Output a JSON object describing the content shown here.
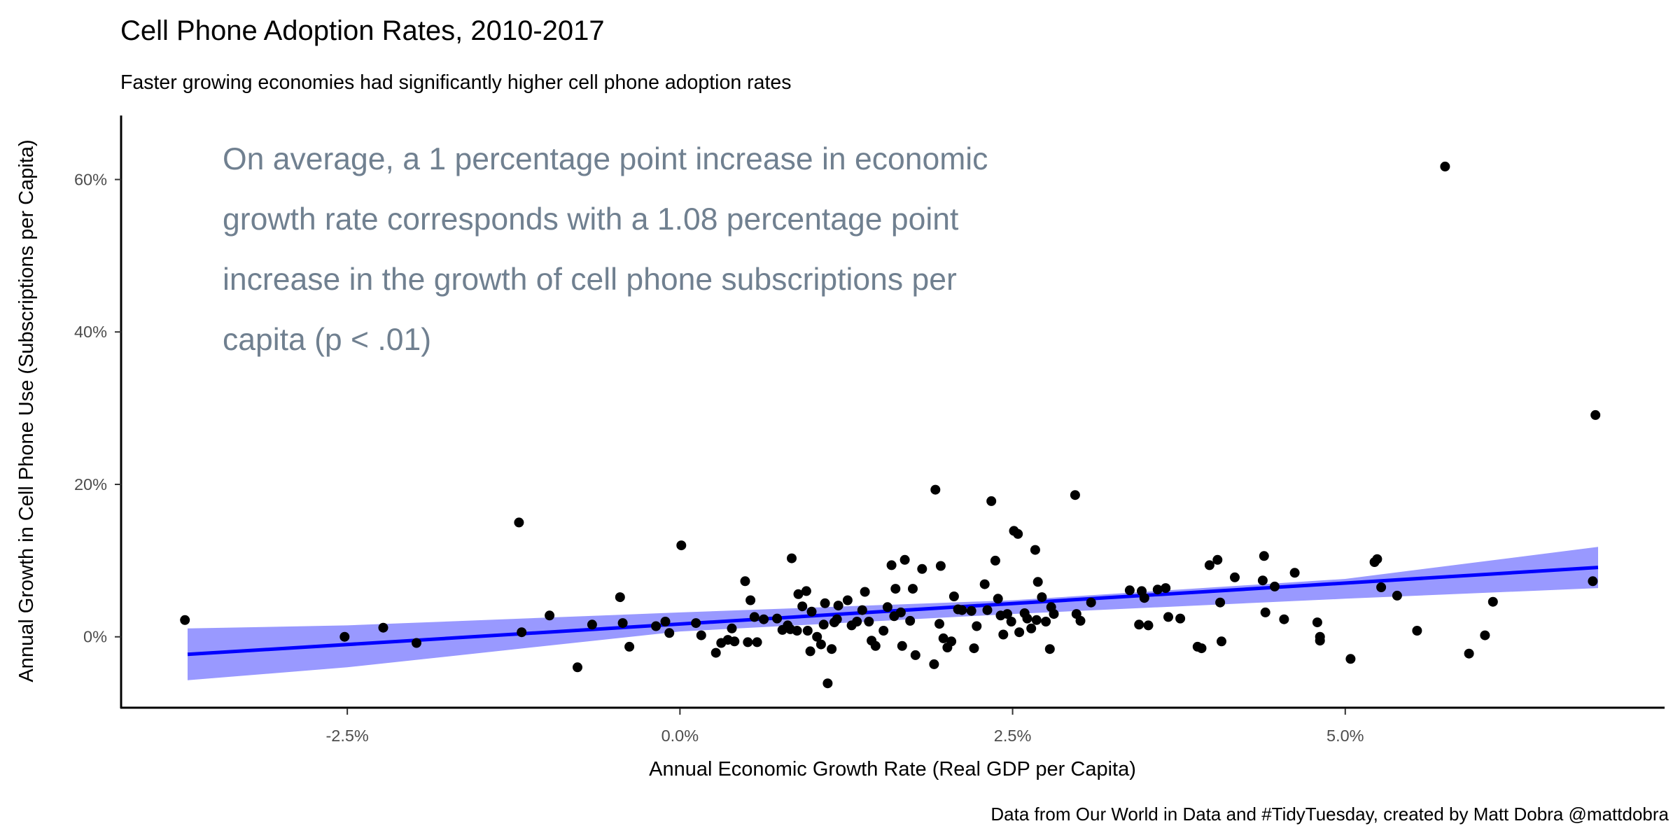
{
  "chart_data": {
    "type": "scatter",
    "title": "Cell Phone Adoption Rates, 2010-2017",
    "subtitle": "Faster growing economies had significantly higher cell phone adoption rates",
    "xlabel": "Annual Economic Growth Rate (Real GDP per Capita)",
    "ylabel": "Annual Growth in Cell Phone Use (Subscriptions per Capita)",
    "caption": "Data from Our World in Data and #TidyTuesday, created by Matt Dobra @mattdobra",
    "annotation_lines": [
      "On average, a 1 percentage point increase in economic",
      "growth rate corresponds with a 1.08 percentage point",
      "increase in the growth of cell phone subscriptions per",
      "capita (p < .01)"
    ],
    "xlim": [
      -4.2,
      7.4
    ],
    "ylim": [
      -9.3,
      68.4
    ],
    "x_ticks": [
      -2.5,
      0,
      2.5,
      5
    ],
    "x_tick_labels": [
      "-2.5%",
      "0.0%",
      "2.5%",
      "5.0%"
    ],
    "y_ticks": [
      0,
      20,
      40,
      60
    ],
    "y_tick_labels": [
      "0%",
      "20%",
      "40%",
      "60%"
    ],
    "grid": false,
    "colors": {
      "points": "#000000",
      "fit_line": "#0000ff",
      "confidence_band": "#9999ff",
      "annotation": "#708090",
      "axis": "#000000",
      "tick_labels": "#4d4d4d"
    },
    "fit_line": {
      "x": [
        -3.7,
        6.9
      ],
      "y": [
        -2.3,
        9.1
      ]
    },
    "confidence_band": {
      "x": [
        -3.7,
        -2.5,
        0,
        2.5,
        5.0,
        6.9
      ],
      "lower": [
        -5.7,
        -4.0,
        0.7,
        3.0,
        5.0,
        6.4
      ],
      "upper": [
        1.1,
        1.5,
        3.2,
        4.8,
        7.6,
        11.8
      ]
    },
    "points": [
      {
        "x": -3.72,
        "y": 2.2
      },
      {
        "x": -2.52,
        "y": 0.0
      },
      {
        "x": -2.23,
        "y": 1.2
      },
      {
        "x": -1.98,
        "y": -0.8
      },
      {
        "x": -1.21,
        "y": 15.0
      },
      {
        "x": -1.19,
        "y": 0.6
      },
      {
        "x": -0.98,
        "y": 2.8
      },
      {
        "x": -0.77,
        "y": -4.0
      },
      {
        "x": -0.66,
        "y": 1.6
      },
      {
        "x": -0.45,
        "y": 5.2
      },
      {
        "x": -0.43,
        "y": 1.8
      },
      {
        "x": -0.38,
        "y": -1.3
      },
      {
        "x": -0.18,
        "y": 1.4
      },
      {
        "x": -0.11,
        "y": 2.0
      },
      {
        "x": -0.08,
        "y": 0.5
      },
      {
        "x": 0.01,
        "y": 12.0
      },
      {
        "x": 0.12,
        "y": 1.8
      },
      {
        "x": 0.16,
        "y": 0.2
      },
      {
        "x": 0.27,
        "y": -2.1
      },
      {
        "x": 0.31,
        "y": -0.8
      },
      {
        "x": 0.36,
        "y": -0.4
      },
      {
        "x": 0.39,
        "y": 1.1
      },
      {
        "x": 0.41,
        "y": -0.6
      },
      {
        "x": 0.49,
        "y": 7.3
      },
      {
        "x": 0.51,
        "y": -0.7
      },
      {
        "x": 0.53,
        "y": 4.8
      },
      {
        "x": 0.56,
        "y": 2.6
      },
      {
        "x": 0.58,
        "y": -0.7
      },
      {
        "x": 0.63,
        "y": 2.3
      },
      {
        "x": 0.73,
        "y": 2.4
      },
      {
        "x": 0.77,
        "y": 0.9
      },
      {
        "x": 0.81,
        "y": 1.5
      },
      {
        "x": 0.83,
        "y": 1.0
      },
      {
        "x": 0.84,
        "y": 10.3
      },
      {
        "x": 0.88,
        "y": 0.8
      },
      {
        "x": 0.89,
        "y": 5.6
      },
      {
        "x": 0.92,
        "y": 4.0
      },
      {
        "x": 0.95,
        "y": 6.0
      },
      {
        "x": 0.96,
        "y": 0.8
      },
      {
        "x": 0.98,
        "y": -1.9
      },
      {
        "x": 0.99,
        "y": 3.3
      },
      {
        "x": 1.03,
        "y": 0.0
      },
      {
        "x": 1.06,
        "y": -1.0
      },
      {
        "x": 1.08,
        "y": 1.6
      },
      {
        "x": 1.09,
        "y": 4.4
      },
      {
        "x": 1.11,
        "y": -6.1
      },
      {
        "x": 1.14,
        "y": -1.6
      },
      {
        "x": 1.16,
        "y": 1.9
      },
      {
        "x": 1.18,
        "y": 2.3
      },
      {
        "x": 1.19,
        "y": 4.1
      },
      {
        "x": 1.26,
        "y": 4.8
      },
      {
        "x": 1.29,
        "y": 1.5
      },
      {
        "x": 1.33,
        "y": 2.0
      },
      {
        "x": 1.37,
        "y": 3.5
      },
      {
        "x": 1.39,
        "y": 5.9
      },
      {
        "x": 1.42,
        "y": 2.0
      },
      {
        "x": 1.44,
        "y": -0.5
      },
      {
        "x": 1.47,
        "y": -1.2
      },
      {
        "x": 1.53,
        "y": 0.8
      },
      {
        "x": 1.56,
        "y": 3.9
      },
      {
        "x": 1.59,
        "y": 9.4
      },
      {
        "x": 1.61,
        "y": 2.7
      },
      {
        "x": 1.62,
        "y": 6.3
      },
      {
        "x": 1.66,
        "y": 3.2
      },
      {
        "x": 1.67,
        "y": -1.2
      },
      {
        "x": 1.69,
        "y": 10.1
      },
      {
        "x": 1.73,
        "y": 2.1
      },
      {
        "x": 1.75,
        "y": 6.3
      },
      {
        "x": 1.77,
        "y": -2.4
      },
      {
        "x": 1.82,
        "y": 8.9
      },
      {
        "x": 1.91,
        "y": -3.6
      },
      {
        "x": 1.92,
        "y": 19.3
      },
      {
        "x": 1.95,
        "y": 1.7
      },
      {
        "x": 1.96,
        "y": 9.3
      },
      {
        "x": 1.98,
        "y": -0.2
      },
      {
        "x": 2.01,
        "y": -1.4
      },
      {
        "x": 2.04,
        "y": -0.6
      },
      {
        "x": 2.06,
        "y": 5.3
      },
      {
        "x": 2.09,
        "y": 3.6
      },
      {
        "x": 2.12,
        "y": 3.5
      },
      {
        "x": 2.19,
        "y": 3.4
      },
      {
        "x": 2.21,
        "y": -1.5
      },
      {
        "x": 2.23,
        "y": 1.4
      },
      {
        "x": 2.29,
        "y": 6.9
      },
      {
        "x": 2.31,
        "y": 3.5
      },
      {
        "x": 2.34,
        "y": 17.8
      },
      {
        "x": 2.37,
        "y": 10.0
      },
      {
        "x": 2.39,
        "y": 5.0
      },
      {
        "x": 2.41,
        "y": 2.8
      },
      {
        "x": 2.43,
        "y": 0.3
      },
      {
        "x": 2.46,
        "y": 3.0
      },
      {
        "x": 2.49,
        "y": 2.0
      },
      {
        "x": 2.51,
        "y": 13.9
      },
      {
        "x": 2.54,
        "y": 13.5
      },
      {
        "x": 2.55,
        "y": 0.6
      },
      {
        "x": 2.59,
        "y": 3.1
      },
      {
        "x": 2.61,
        "y": 2.4
      },
      {
        "x": 2.64,
        "y": 1.1
      },
      {
        "x": 2.67,
        "y": 11.4
      },
      {
        "x": 2.68,
        "y": 2.2
      },
      {
        "x": 2.69,
        "y": 7.2
      },
      {
        "x": 2.72,
        "y": 5.2
      },
      {
        "x": 2.75,
        "y": 2.0
      },
      {
        "x": 2.78,
        "y": -1.6
      },
      {
        "x": 2.79,
        "y": 3.9
      },
      {
        "x": 2.81,
        "y": 3.0
      },
      {
        "x": 2.97,
        "y": 18.6
      },
      {
        "x": 2.98,
        "y": 3.0
      },
      {
        "x": 3.01,
        "y": 2.1
      },
      {
        "x": 3.09,
        "y": 4.5
      },
      {
        "x": 3.38,
        "y": 6.1
      },
      {
        "x": 3.45,
        "y": 1.6
      },
      {
        "x": 3.47,
        "y": 6.0
      },
      {
        "x": 3.49,
        "y": 5.1
      },
      {
        "x": 3.52,
        "y": 1.5
      },
      {
        "x": 3.59,
        "y": 6.2
      },
      {
        "x": 3.65,
        "y": 6.4
      },
      {
        "x": 3.67,
        "y": 2.6
      },
      {
        "x": 3.76,
        "y": 2.4
      },
      {
        "x": 3.89,
        "y": -1.3
      },
      {
        "x": 3.92,
        "y": -1.5
      },
      {
        "x": 3.98,
        "y": 9.4
      },
      {
        "x": 4.04,
        "y": 10.1
      },
      {
        "x": 4.06,
        "y": 4.5
      },
      {
        "x": 4.07,
        "y": -0.6
      },
      {
        "x": 4.17,
        "y": 7.8
      },
      {
        "x": 4.38,
        "y": 7.4
      },
      {
        "x": 4.39,
        "y": 10.6
      },
      {
        "x": 4.4,
        "y": 3.2
      },
      {
        "x": 4.47,
        "y": 6.6
      },
      {
        "x": 4.54,
        "y": 2.3
      },
      {
        "x": 4.62,
        "y": 8.4
      },
      {
        "x": 4.79,
        "y": 1.9
      },
      {
        "x": 4.81,
        "y": 0.0
      },
      {
        "x": 4.81,
        "y": -0.5
      },
      {
        "x": 5.04,
        "y": -2.9
      },
      {
        "x": 5.22,
        "y": 9.8
      },
      {
        "x": 5.24,
        "y": 10.2
      },
      {
        "x": 5.27,
        "y": 6.5
      },
      {
        "x": 5.39,
        "y": 5.4
      },
      {
        "x": 5.54,
        "y": 0.8
      },
      {
        "x": 5.75,
        "y": 61.7
      },
      {
        "x": 5.93,
        "y": -2.2
      },
      {
        "x": 6.05,
        "y": 0.2
      },
      {
        "x": 6.11,
        "y": 4.6
      },
      {
        "x": 6.86,
        "y": 7.3
      },
      {
        "x": 6.88,
        "y": 29.1
      }
    ]
  }
}
